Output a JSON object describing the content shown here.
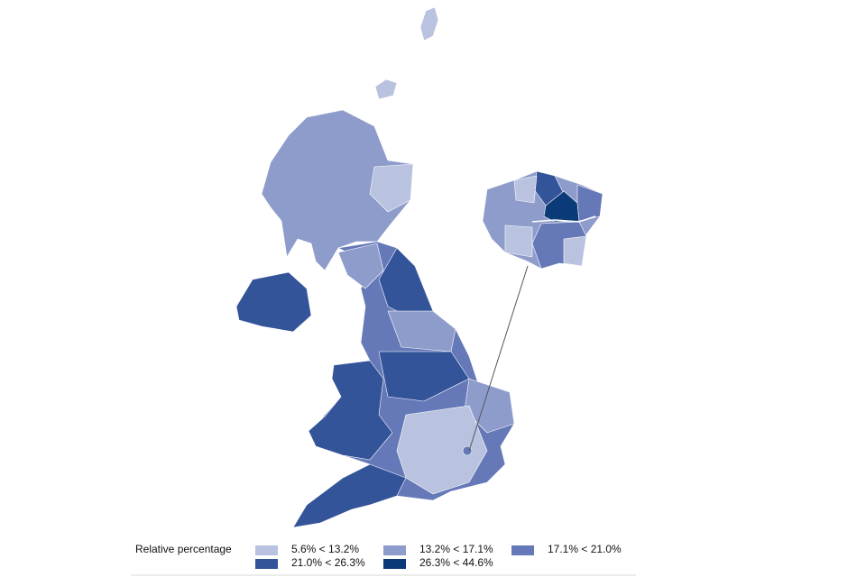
{
  "legend": {
    "title": "Relative percentage",
    "items": [
      {
        "label": "5.6% < 13.2%",
        "color": "#b9c3df"
      },
      {
        "label": "13.2% < 17.1%",
        "color": "#8e9ccb"
      },
      {
        "label": "17.1% < 21.0%",
        "color": "#6578b7"
      },
      {
        "label": "21.0% < 26.3%",
        "color": "#34549a"
      },
      {
        "label": "26.3% < 44.6%",
        "color": "#0b3a78"
      }
    ]
  }
}
